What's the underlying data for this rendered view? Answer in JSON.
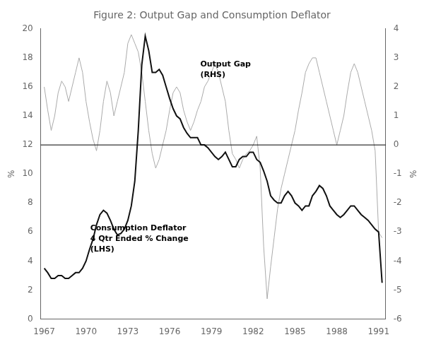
{
  "chart_data": {
    "type": "line",
    "title": "Figure 2: Output Gap and Consumption Deflator",
    "ylabel": "%",
    "y2label": "%",
    "xlim": [
      1966.75,
      1991.5
    ],
    "xticks": [
      1967,
      1970,
      1973,
      1976,
      1979,
      1982,
      1985,
      1988,
      1991
    ],
    "ylim": [
      0,
      20
    ],
    "yticks": [
      0,
      2,
      4,
      6,
      8,
      10,
      12,
      14,
      16,
      18,
      20
    ],
    "y2lim": [
      -6,
      4
    ],
    "y2ticks": [
      -6,
      -5,
      -4,
      -3,
      -2,
      -1,
      0,
      1,
      2,
      3,
      4
    ],
    "grid": false,
    "hline": {
      "axis": "y",
      "value": 12
    },
    "annotations": [
      {
        "text": "Output Gap\n(RHS)",
        "x": 1978.2,
        "y": 17.8
      },
      {
        "text": "Consumption Deflator\n4 Qtr Ended % Change\n(LHS)",
        "x": 1970.3,
        "y": 6.5
      }
    ],
    "x": [
      1967.0,
      1967.25,
      1967.5,
      1967.75,
      1968.0,
      1968.25,
      1968.5,
      1968.75,
      1969.0,
      1969.25,
      1969.5,
      1969.75,
      1970.0,
      1970.25,
      1970.5,
      1970.75,
      1971.0,
      1971.25,
      1971.5,
      1971.75,
      1972.0,
      1972.25,
      1972.5,
      1972.75,
      1973.0,
      1973.25,
      1973.5,
      1973.75,
      1974.0,
      1974.25,
      1974.5,
      1974.75,
      1975.0,
      1975.25,
      1975.5,
      1975.75,
      1976.0,
      1976.25,
      1976.5,
      1976.75,
      1977.0,
      1977.25,
      1977.5,
      1977.75,
      1978.0,
      1978.25,
      1978.5,
      1978.75,
      1979.0,
      1979.25,
      1979.5,
      1979.75,
      1980.0,
      1980.25,
      1980.5,
      1980.75,
      1981.0,
      1981.25,
      1981.5,
      1981.75,
      1982.0,
      1982.25,
      1982.5,
      1982.75,
      1983.0,
      1983.25,
      1983.5,
      1983.75,
      1984.0,
      1984.25,
      1984.5,
      1984.75,
      1985.0,
      1985.25,
      1985.5,
      1985.75,
      1986.0,
      1986.25,
      1986.5,
      1986.75,
      1987.0,
      1987.25,
      1987.5,
      1987.75,
      1988.0,
      1988.25,
      1988.5,
      1988.75,
      1989.0,
      1989.25,
      1989.5,
      1989.75,
      1990.0,
      1990.25,
      1990.5,
      1990.75,
      1991.0,
      1991.25
    ],
    "series": [
      {
        "axis": "y2",
        "color": "#aaaaaa",
        "values": [
          2.0,
          1.2,
          0.5,
          1.0,
          1.8,
          2.2,
          2.0,
          1.5,
          2.0,
          2.5,
          3.0,
          2.5,
          1.5,
          0.8,
          0.2,
          -0.2,
          0.5,
          1.5,
          2.2,
          1.8,
          1.0,
          1.5,
          2.0,
          2.5,
          3.5,
          3.8,
          3.5,
          3.2,
          2.5,
          1.5,
          0.5,
          -0.3,
          -0.8,
          -0.5,
          0.0,
          0.5,
          1.2,
          1.8,
          2.0,
          1.8,
          1.2,
          0.8,
          0.5,
          0.8,
          1.2,
          1.5,
          2.0,
          2.2,
          2.5,
          2.8,
          2.5,
          2.0,
          1.5,
          0.5,
          -0.3,
          -0.5,
          -0.8,
          -0.5,
          -0.3,
          -0.2,
          0.0,
          0.3,
          -0.8,
          -3.5,
          -5.3,
          -4.2,
          -3.2,
          -2.2,
          -1.5,
          -1.0,
          -0.5,
          0.0,
          0.5,
          1.2,
          1.8,
          2.5,
          2.8,
          3.0,
          3.0,
          2.5,
          2.0,
          1.5,
          1.0,
          0.5,
          0.0,
          0.5,
          1.0,
          1.8,
          2.5,
          2.8,
          2.5,
          2.0,
          1.5,
          1.0,
          0.5,
          -0.2,
          -3.0,
          -3.2
        ]
      },
      {
        "axis": "y",
        "color": "#111111",
        "values": [
          3.5,
          3.2,
          2.8,
          2.8,
          3.0,
          3.0,
          2.8,
          2.8,
          3.0,
          3.2,
          3.2,
          3.5,
          4.0,
          4.8,
          5.5,
          6.5,
          7.2,
          7.5,
          7.3,
          6.8,
          6.2,
          5.8,
          5.9,
          6.2,
          6.8,
          7.8,
          9.5,
          13.0,
          17.5,
          19.5,
          18.5,
          17.0,
          17.0,
          17.2,
          16.8,
          16.0,
          15.2,
          14.5,
          14.0,
          13.8,
          13.2,
          12.8,
          12.5,
          12.5,
          12.5,
          12.0,
          12.0,
          11.8,
          11.5,
          11.2,
          11.0,
          11.2,
          11.5,
          11.0,
          10.5,
          10.5,
          11.0,
          11.2,
          11.2,
          11.5,
          11.5,
          11.0,
          10.8,
          10.2,
          9.5,
          8.5,
          8.2,
          8.0,
          8.0,
          8.5,
          8.8,
          8.5,
          8.0,
          7.8,
          7.5,
          7.8,
          7.8,
          8.5,
          8.8,
          9.2,
          9.0,
          8.5,
          7.8,
          7.5,
          7.2,
          7.0,
          7.2,
          7.5,
          7.8,
          7.8,
          7.5,
          7.2,
          7.0,
          6.8,
          6.5,
          6.2,
          6.0,
          2.5
        ]
      }
    ]
  }
}
